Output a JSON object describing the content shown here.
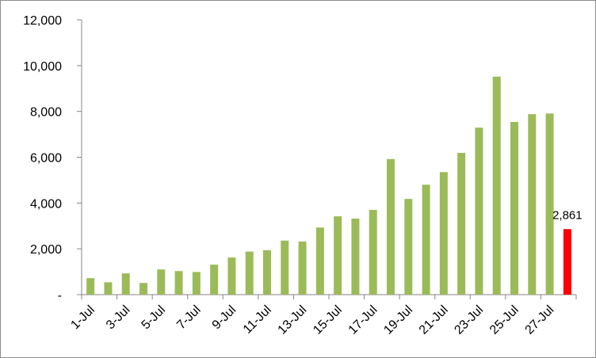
{
  "chart_data": {
    "type": "bar",
    "categories": [
      "1-Jul",
      "2-Jul",
      "3-Jul",
      "4-Jul",
      "5-Jul",
      "6-Jul",
      "7-Jul",
      "8-Jul",
      "9-Jul",
      "10-Jul",
      "11-Jul",
      "12-Jul",
      "13-Jul",
      "14-Jul",
      "15-Jul",
      "16-Jul",
      "17-Jul",
      "18-Jul",
      "19-Jul",
      "20-Jul",
      "21-Jul",
      "22-Jul",
      "23-Jul",
      "24-Jul",
      "25-Jul",
      "26-Jul",
      "27-Jul",
      "28-Jul"
    ],
    "x_tick_labels": [
      "1-Jul",
      "3-Jul",
      "5-Jul",
      "7-Jul",
      "9-Jul",
      "11-Jul",
      "13-Jul",
      "15-Jul",
      "17-Jul",
      "19-Jul",
      "21-Jul",
      "23-Jul",
      "25-Jul",
      "27-Jul"
    ],
    "values": [
      720,
      540,
      930,
      510,
      1100,
      1030,
      990,
      1310,
      1620,
      1880,
      1940,
      2360,
      2320,
      2930,
      3420,
      3320,
      3700,
      5920,
      4180,
      4800,
      5350,
      6190,
      7290,
      9520,
      7540,
      7880,
      7910,
      2861
    ],
    "highlight_index": 27,
    "highlight_label": "2,861",
    "ylim": [
      0,
      12000
    ],
    "y_ticks": [
      0,
      2000,
      4000,
      6000,
      8000,
      10000,
      12000
    ],
    "y_tick_labels": [
      "-",
      "2,000",
      "4,000",
      "6,000",
      "8,000",
      "10,000",
      "12,000"
    ],
    "title": "",
    "xlabel": "",
    "ylabel": "",
    "grid": false,
    "legend": "none",
    "colors": {
      "bar": "#9bbb59",
      "highlight": "#ff0000",
      "axis": "#868686"
    }
  }
}
